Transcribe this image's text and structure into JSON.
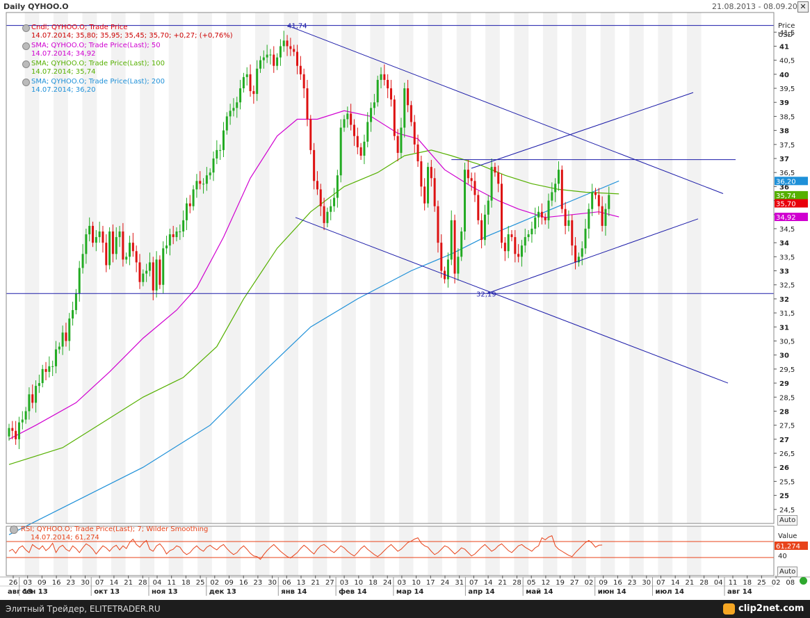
{
  "header": {
    "title": "Daily QYHOO.O",
    "date_range": "21.08.2013 - 08.09.2014 (EST)"
  },
  "legend": [
    {
      "line1": "Cndl; QYHOO.O; Trade Price",
      "line2": "14.07.2014; 35,80; 35,95; 35,45; 35,70; +0,27; (+0,76%)",
      "color": "#e8000b",
      "color2": "#cc0000"
    },
    {
      "line1": "SMA; QYHOO.O; Trade Price(Last);  50",
      "line2": "14.07.2014; 34,92",
      "color": "#d000d0"
    },
    {
      "line1": "SMA; QYHOO.O; Trade Price(Last);  100",
      "line2": "14.07.2014; 35,74",
      "color": "#55b000"
    },
    {
      "line1": "SMA; QYHOO.O; Trade Price(Last);  200",
      "line2": "14.07.2014; 36,20",
      "color": "#1e90d8"
    }
  ],
  "price_axis": {
    "title1": "Price",
    "title2": "USD",
    "auto_label": "Auto"
  },
  "rsi": {
    "legend1": "RSI; QYHOO.O; Trade Price(Last);  7; Wilder Smoothing",
    "legend2": "14.07.2014; 61,274",
    "axis_title": "Value",
    "last_value": "61,274",
    "level_label": "40",
    "auto_label": "Auto",
    "line_color": "#e8431a"
  },
  "price_badges": [
    {
      "value": 36.2,
      "text": "36,20",
      "color": "#1e90d8"
    },
    {
      "value": 35.74,
      "text": "35,74",
      "color": "#55b000"
    },
    {
      "value": 35.7,
      "text": "35,70",
      "color": "#e8000b"
    },
    {
      "value": 34.92,
      "text": "34,92",
      "color": "#d000d0"
    }
  ],
  "annotations": [
    {
      "text": "41,74",
      "value": 41.74
    },
    {
      "text": "32,19",
      "value": 32.19
    }
  ],
  "footer": {
    "left_text": "Элитный Трейдер, ELITETRADER.RU",
    "brand": "clip2net.com"
  },
  "chart_data": {
    "type": "candlestick",
    "title": "Daily QYHOO.O",
    "ylabel": "Price USD",
    "ylim": [
      24.0,
      42.2
    ],
    "y_ticks": [
      "24,5",
      "25",
      "25,5",
      "26",
      "26,5",
      "27",
      "27,5",
      "28",
      "28,5",
      "29",
      "29,5",
      "30",
      "30,5",
      "31",
      "31,5",
      "32",
      "32,5",
      "33",
      "33,5",
      "34",
      "34,5",
      "35",
      "35,5",
      "36",
      "36,5",
      "37",
      "37,5",
      "38",
      "38,5",
      "39",
      "39,5",
      "40",
      "40,5",
      "41",
      "41,5"
    ],
    "y_tick_values": [
      24.5,
      25,
      25.5,
      26,
      26.5,
      27,
      27.5,
      28,
      28.5,
      29,
      29.5,
      30,
      30.5,
      31,
      31.5,
      32,
      32.5,
      33,
      33.5,
      34,
      34.5,
      35,
      35.5,
      36,
      36.5,
      37,
      37.5,
      38,
      38.5,
      39,
      39.5,
      40,
      40.5,
      41,
      41.5
    ],
    "x_tick_labels": [
      "26",
      "03",
      "09",
      "16",
      "23",
      "30",
      "07",
      "14",
      "21",
      "28",
      "04",
      "11",
      "18",
      "25",
      "02",
      "09",
      "16",
      "23",
      "30",
      "06",
      "13",
      "21",
      "27",
      "03",
      "10",
      "18",
      "24",
      "03",
      "10",
      "17",
      "24",
      "31",
      "07",
      "14",
      "21",
      "28",
      "05",
      "12",
      "19",
      "27",
      "02",
      "09",
      "16",
      "23",
      "30",
      "07",
      "14",
      "21",
      "28",
      "04",
      "11",
      "18",
      "25",
      "02",
      "08"
    ],
    "month_labels": [
      "авг 13",
      "сен 13",
      "окт 13",
      "ноя 13",
      "дек 13",
      "янв 14",
      "фев 14",
      "мар 14",
      "апр 14",
      "май 14",
      "июн 14",
      "июл 14",
      "авг 14"
    ],
    "month_start_index": [
      0,
      1,
      6,
      10,
      14,
      19,
      23,
      27,
      32,
      36,
      41,
      45,
      50
    ],
    "horizontal_lines": [
      41.74,
      32.19,
      36.96
    ],
    "trend_lines": [
      {
        "from": [
          57,
          41.74
        ],
        "to": [
          148,
          35.75
        ]
      },
      {
        "from": [
          60,
          34.9
        ],
        "to": [
          149,
          29.0
        ]
      },
      {
        "from": [
          96,
          32.19
        ],
        "to": [
          146,
          34.85
        ]
      },
      {
        "from": [
          94,
          36.65
        ],
        "to": [
          145,
          39.35
        ]
      }
    ],
    "close_series": [
      27.4,
      27.3,
      27.0,
      27.6,
      27.7,
      28.0,
      28.6,
      28.3,
      28.9,
      29.0,
      29.5,
      29.4,
      29.6,
      29.6,
      30.2,
      30.3,
      30.8,
      30.5,
      31.3,
      31.6,
      32.2,
      33.1,
      33.6,
      34.3,
      34.6,
      34.0,
      34.2,
      34.4,
      34.0,
      33.2,
      34.4,
      33.6,
      34.2,
      34.4,
      33.4,
      33.5,
      34.0,
      33.7,
      33.3,
      32.6,
      32.9,
      33.0,
      33.3,
      32.3,
      33.4,
      32.5,
      33.8,
      33.9,
      34.3,
      34.2,
      34.4,
      34.4,
      34.8,
      35.4,
      35.3,
      35.9,
      36.2,
      36.1,
      36.1,
      36.4,
      36.5,
      37.0,
      37.3,
      37.3,
      38.0,
      38.5,
      38.7,
      38.8,
      39.0,
      39.5,
      39.9,
      40.0,
      39.4,
      39.3,
      40.2,
      40.5,
      40.6,
      40.7,
      40.7,
      40.3,
      40.6,
      41.0,
      41.2,
      41.0,
      40.9,
      40.8,
      40.3,
      40.0,
      39.5,
      38.4,
      37.3,
      36.2,
      35.9,
      35.3,
      34.7,
      35.1,
      35.3,
      35.6,
      36.4,
      38.1,
      38.4,
      38.6,
      38.2,
      37.8,
      37.4,
      37.1,
      37.6,
      38.3,
      38.8,
      39.0,
      39.8,
      40.0,
      39.8,
      39.5,
      39.1,
      37.8,
      37.2,
      38.1,
      39.5,
      38.9,
      38.3,
      37.5,
      36.9,
      36.0,
      35.4,
      36.7,
      36.3,
      35.3,
      34.0,
      33.0,
      32.7,
      33.4,
      34.8,
      32.9,
      33.5,
      34.4,
      36.6,
      36.3,
      36.2,
      35.7,
      34.8,
      34.1,
      35.0,
      35.5,
      36.7,
      36.5,
      36.1,
      34.0,
      33.7,
      34.3,
      34.2,
      33.6,
      33.5,
      33.9,
      34.2,
      34.3,
      34.5,
      34.9,
      35.1,
      34.9,
      34.8,
      35.5,
      35.8,
      36.1,
      36.6,
      35.2,
      34.6,
      34.8,
      33.9,
      33.3,
      33.5,
      33.8,
      34.5,
      35.2,
      35.8,
      35.7,
      35.3,
      34.6,
      35.2,
      35.7
    ],
    "sma50_series_unsampled": "see sma arrays",
    "sma50": [
      [
        0,
        27.0
      ],
      [
        8,
        27.5
      ],
      [
        20,
        28.3
      ],
      [
        30,
        29.4
      ],
      [
        40,
        30.6
      ],
      [
        50,
        31.6
      ],
      [
        56,
        32.4
      ],
      [
        64,
        34.2
      ],
      [
        72,
        36.3
      ],
      [
        80,
        37.8
      ],
      [
        86,
        38.4
      ],
      [
        92,
        38.4
      ],
      [
        100,
        38.7
      ],
      [
        108,
        38.5
      ],
      [
        116,
        37.9
      ],
      [
        122,
        37.7
      ],
      [
        130,
        36.6
      ],
      [
        138,
        36.0
      ],
      [
        146,
        35.5
      ],
      [
        152,
        35.2
      ],
      [
        160,
        34.9
      ],
      [
        168,
        35.0
      ],
      [
        176,
        35.1
      ],
      [
        182,
        34.92
      ]
    ],
    "sma100": [
      [
        0,
        26.1
      ],
      [
        16,
        26.7
      ],
      [
        28,
        27.6
      ],
      [
        40,
        28.5
      ],
      [
        52,
        29.2
      ],
      [
        62,
        30.3
      ],
      [
        70,
        32.0
      ],
      [
        80,
        33.8
      ],
      [
        90,
        35.1
      ],
      [
        100,
        36.0
      ],
      [
        110,
        36.5
      ],
      [
        118,
        37.1
      ],
      [
        126,
        37.3
      ],
      [
        132,
        37.1
      ],
      [
        140,
        36.8
      ],
      [
        148,
        36.4
      ],
      [
        156,
        36.1
      ],
      [
        164,
        35.9
      ],
      [
        172,
        35.8
      ],
      [
        182,
        35.74
      ]
    ],
    "sma200": [
      [
        0,
        23.6
      ],
      [
        20,
        24.8
      ],
      [
        40,
        26.0
      ],
      [
        60,
        27.5
      ],
      [
        76,
        29.4
      ],
      [
        90,
        31.0
      ],
      [
        104,
        32.0
      ],
      [
        120,
        33.0
      ],
      [
        132,
        33.6
      ],
      [
        142,
        34.2
      ],
      [
        152,
        34.7
      ],
      [
        162,
        35.2
      ],
      [
        172,
        35.7
      ],
      [
        182,
        36.2
      ]
    ],
    "rsi_series": [
      52,
      55,
      49,
      57,
      60,
      54,
      50,
      62,
      58,
      55,
      60,
      53,
      57,
      64,
      50,
      58,
      61,
      55,
      52,
      60,
      56,
      50,
      57,
      63,
      60,
      55,
      48,
      54,
      60,
      57,
      52,
      58,
      61,
      54,
      60,
      56,
      65,
      70,
      62,
      58,
      64,
      68,
      55,
      52,
      60,
      63,
      57,
      48,
      53,
      55,
      60,
      58,
      51,
      47,
      50,
      56,
      60,
      55,
      52,
      58,
      61,
      57,
      54,
      59,
      62,
      56,
      51,
      47,
      50,
      56,
      60,
      55,
      49,
      45,
      44,
      40,
      47,
      53,
      58,
      62,
      57,
      52,
      48,
      44,
      42,
      46,
      50,
      56,
      61,
      57,
      52,
      48,
      55,
      60,
      62,
      58,
      53,
      50,
      55,
      60,
      57,
      52,
      48,
      45,
      50,
      56,
      60,
      55,
      51,
      47,
      44,
      48,
      53,
      58,
      62,
      57,
      52,
      55,
      60,
      65,
      67,
      70,
      72,
      64,
      60,
      58,
      52,
      47,
      50,
      55,
      60,
      58,
      53,
      48,
      52,
      57,
      55,
      50,
      45,
      48,
      53,
      58,
      62,
      57,
      52,
      55,
      60,
      63,
      58,
      53,
      50,
      55,
      60,
      62,
      58,
      55,
      52,
      57,
      60,
      72,
      69,
      73,
      75,
      60,
      55,
      52,
      49,
      46,
      44,
      50,
      55,
      60,
      65,
      68,
      64,
      58,
      61,
      61.274
    ]
  }
}
